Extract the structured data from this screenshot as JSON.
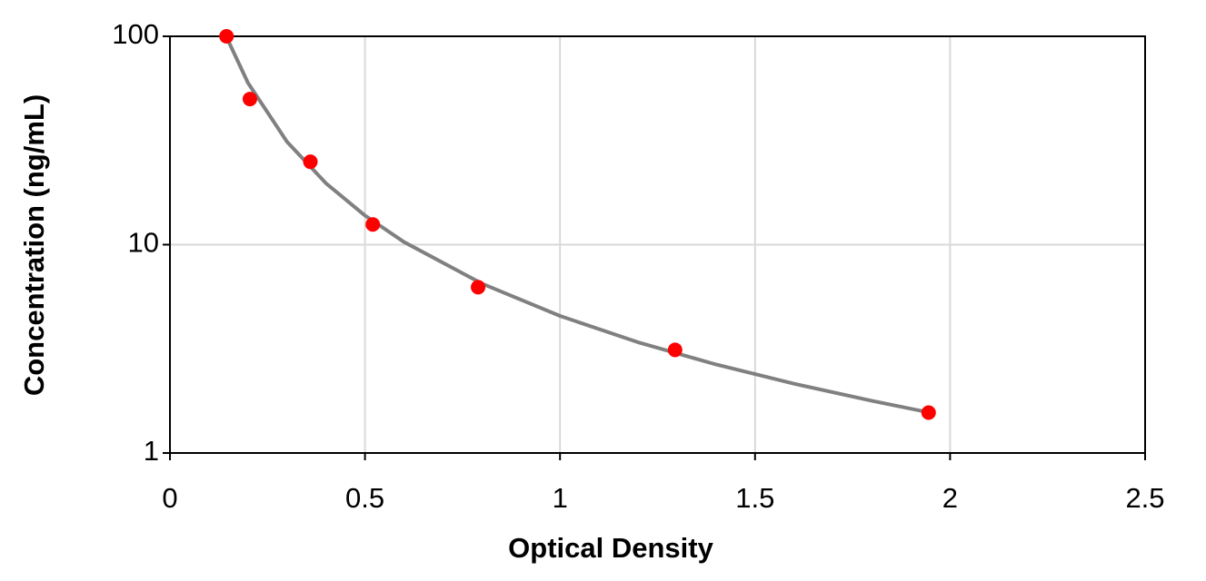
{
  "chart_data": {
    "type": "scatter",
    "x_label": "Optical Density",
    "y_label": "Concentration (ng/mL)",
    "xlim": [
      0,
      2.5
    ],
    "xticks": [
      0,
      0.5,
      1,
      1.5,
      2,
      2.5
    ],
    "ylim": [
      1,
      100
    ],
    "yticks": [
      1,
      10,
      100
    ],
    "y_log": true,
    "grid": true,
    "series": [
      {
        "type": "line",
        "color": "#808080",
        "x": [
          0.145,
          0.15,
          0.2,
          0.3,
          0.4,
          0.5,
          0.6,
          0.8,
          1.0,
          1.2,
          1.4,
          1.6,
          1.8,
          1.95
        ],
        "values": [
          100,
          94.7,
          59.8,
          31.2,
          19.7,
          13.8,
          10.3,
          6.5,
          4.55,
          3.4,
          2.66,
          2.15,
          1.78,
          1.56
        ]
      },
      {
        "type": "scatter",
        "color": "#ff0000",
        "x": [
          0.145,
          0.205,
          0.36,
          0.52,
          0.79,
          1.295,
          1.945
        ],
        "values": [
          100,
          50,
          25,
          12.5,
          6.25,
          3.125,
          1.5625
        ]
      }
    ]
  }
}
